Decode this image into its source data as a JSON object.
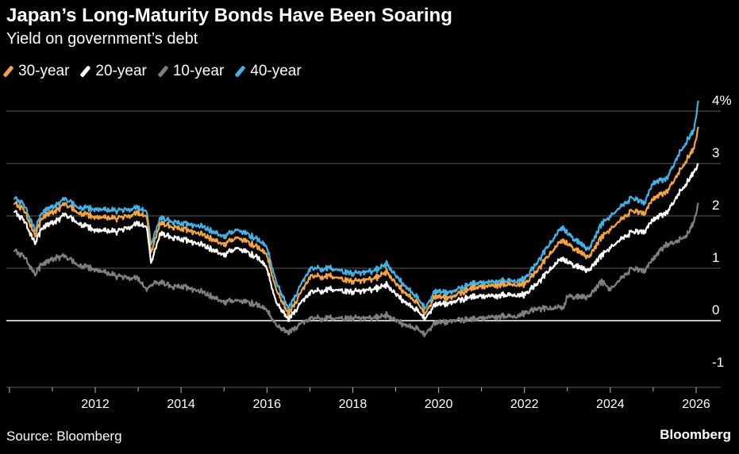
{
  "header": {
    "title": "Japan’s Long-Maturity Bonds Have Been Soaring",
    "subtitle": "Yield on government’s debt"
  },
  "footer": {
    "source": "Source: Bloomberg",
    "brand": "Bloomberg"
  },
  "colors": {
    "background": "#000000",
    "grid": "#5a5a5a",
    "zero_line": "#ffffff"
  },
  "chart_data": {
    "type": "line",
    "title": "Japan’s Long-Maturity Bonds Have Been Soaring",
    "subtitle": "Yield on government’s debt",
    "xlabel": "",
    "ylabel": "",
    "xlim": [
      2010.0,
      2026.6
    ],
    "ylim": [
      -1.0,
      4.0
    ],
    "x_ticks": [
      "2012",
      "2014",
      "2016",
      "2018",
      "2020",
      "2022",
      "2024",
      "2026"
    ],
    "y_ticks": [
      "4%",
      "3",
      "2",
      "1",
      "0",
      "-1"
    ],
    "y_tick_values": [
      4,
      3,
      2,
      1,
      0,
      -1
    ],
    "legend": "top-left",
    "grid": true,
    "series": [
      {
        "name": "30-year",
        "color": "#f5a33b",
        "points": [
          [
            2010.1,
            2.25
          ],
          [
            2010.3,
            2.15
          ],
          [
            2010.6,
            1.65
          ],
          [
            2010.8,
            2.0
          ],
          [
            2011.1,
            2.1
          ],
          [
            2011.3,
            2.25
          ],
          [
            2011.6,
            2.05
          ],
          [
            2012.0,
            2.0
          ],
          [
            2012.5,
            1.95
          ],
          [
            2013.0,
            2.05
          ],
          [
            2013.2,
            2.0
          ],
          [
            2013.3,
            1.3
          ],
          [
            2013.5,
            1.85
          ],
          [
            2014.0,
            1.75
          ],
          [
            2014.5,
            1.65
          ],
          [
            2015.0,
            1.45
          ],
          [
            2015.3,
            1.6
          ],
          [
            2015.8,
            1.4
          ],
          [
            2016.0,
            1.25
          ],
          [
            2016.2,
            0.6
          ],
          [
            2016.5,
            0.1
          ],
          [
            2016.8,
            0.55
          ],
          [
            2017.0,
            0.85
          ],
          [
            2017.5,
            0.85
          ],
          [
            2018.0,
            0.75
          ],
          [
            2018.5,
            0.8
          ],
          [
            2018.8,
            0.95
          ],
          [
            2019.0,
            0.7
          ],
          [
            2019.5,
            0.35
          ],
          [
            2019.7,
            0.15
          ],
          [
            2019.9,
            0.45
          ],
          [
            2020.3,
            0.45
          ],
          [
            2020.8,
            0.62
          ],
          [
            2021.3,
            0.68
          ],
          [
            2021.8,
            0.68
          ],
          [
            2022.0,
            0.7
          ],
          [
            2022.3,
            0.95
          ],
          [
            2022.6,
            1.3
          ],
          [
            2022.9,
            1.55
          ],
          [
            2023.0,
            1.45
          ],
          [
            2023.5,
            1.2
          ],
          [
            2023.8,
            1.6
          ],
          [
            2024.0,
            1.75
          ],
          [
            2024.5,
            2.1
          ],
          [
            2024.8,
            2.05
          ],
          [
            2025.0,
            2.35
          ],
          [
            2025.3,
            2.45
          ],
          [
            2025.6,
            2.85
          ],
          [
            2025.8,
            3.1
          ],
          [
            2025.95,
            3.3
          ],
          [
            2026.05,
            3.7
          ]
        ]
      },
      {
        "name": "20-year",
        "color": "#ffffff",
        "points": [
          [
            2010.1,
            2.1
          ],
          [
            2010.3,
            1.95
          ],
          [
            2010.6,
            1.5
          ],
          [
            2010.8,
            1.8
          ],
          [
            2011.1,
            1.9
          ],
          [
            2011.3,
            2.05
          ],
          [
            2011.6,
            1.85
          ],
          [
            2012.0,
            1.75
          ],
          [
            2012.5,
            1.7
          ],
          [
            2013.0,
            1.85
          ],
          [
            2013.2,
            1.8
          ],
          [
            2013.3,
            1.1
          ],
          [
            2013.5,
            1.65
          ],
          [
            2014.0,
            1.55
          ],
          [
            2014.5,
            1.45
          ],
          [
            2015.0,
            1.25
          ],
          [
            2015.3,
            1.4
          ],
          [
            2015.8,
            1.2
          ],
          [
            2016.0,
            1.0
          ],
          [
            2016.2,
            0.35
          ],
          [
            2016.5,
            0.0
          ],
          [
            2016.8,
            0.35
          ],
          [
            2017.0,
            0.55
          ],
          [
            2017.5,
            0.6
          ],
          [
            2018.0,
            0.55
          ],
          [
            2018.5,
            0.6
          ],
          [
            2018.8,
            0.7
          ],
          [
            2019.0,
            0.5
          ],
          [
            2019.5,
            0.2
          ],
          [
            2019.7,
            0.05
          ],
          [
            2019.9,
            0.3
          ],
          [
            2020.3,
            0.35
          ],
          [
            2020.8,
            0.45
          ],
          [
            2021.3,
            0.48
          ],
          [
            2021.8,
            0.48
          ],
          [
            2022.0,
            0.5
          ],
          [
            2022.3,
            0.7
          ],
          [
            2022.6,
            1.0
          ],
          [
            2022.9,
            1.2
          ],
          [
            2023.0,
            1.1
          ],
          [
            2023.5,
            0.95
          ],
          [
            2023.8,
            1.25
          ],
          [
            2024.0,
            1.4
          ],
          [
            2024.5,
            1.7
          ],
          [
            2024.8,
            1.7
          ],
          [
            2025.0,
            1.95
          ],
          [
            2025.3,
            2.05
          ],
          [
            2025.6,
            2.45
          ],
          [
            2025.8,
            2.65
          ],
          [
            2025.95,
            2.85
          ],
          [
            2026.05,
            3.0
          ]
        ]
      },
      {
        "name": "10-year",
        "color": "#7f7f7f",
        "points": [
          [
            2010.1,
            1.35
          ],
          [
            2010.3,
            1.25
          ],
          [
            2010.6,
            0.9
          ],
          [
            2010.8,
            1.1
          ],
          [
            2011.1,
            1.2
          ],
          [
            2011.3,
            1.25
          ],
          [
            2011.6,
            1.05
          ],
          [
            2012.0,
            1.0
          ],
          [
            2012.5,
            0.85
          ],
          [
            2013.0,
            0.8
          ],
          [
            2013.2,
            0.6
          ],
          [
            2013.4,
            0.75
          ],
          [
            2013.8,
            0.65
          ],
          [
            2014.0,
            0.65
          ],
          [
            2014.5,
            0.55
          ],
          [
            2015.0,
            0.35
          ],
          [
            2015.3,
            0.4
          ],
          [
            2015.8,
            0.3
          ],
          [
            2016.0,
            0.2
          ],
          [
            2016.2,
            -0.1
          ],
          [
            2016.5,
            -0.25
          ],
          [
            2016.8,
            -0.05
          ],
          [
            2017.0,
            0.05
          ],
          [
            2017.5,
            0.05
          ],
          [
            2018.0,
            0.05
          ],
          [
            2018.5,
            0.05
          ],
          [
            2018.8,
            0.12
          ],
          [
            2019.0,
            0.0
          ],
          [
            2019.5,
            -0.15
          ],
          [
            2019.7,
            -0.25
          ],
          [
            2019.9,
            -0.05
          ],
          [
            2020.3,
            0.0
          ],
          [
            2020.8,
            0.02
          ],
          [
            2021.3,
            0.08
          ],
          [
            2021.8,
            0.07
          ],
          [
            2022.0,
            0.15
          ],
          [
            2022.3,
            0.22
          ],
          [
            2022.6,
            0.25
          ],
          [
            2022.9,
            0.25
          ],
          [
            2023.0,
            0.45
          ],
          [
            2023.5,
            0.45
          ],
          [
            2023.8,
            0.75
          ],
          [
            2024.0,
            0.6
          ],
          [
            2024.5,
            1.0
          ],
          [
            2024.8,
            0.95
          ],
          [
            2025.0,
            1.2
          ],
          [
            2025.3,
            1.45
          ],
          [
            2025.6,
            1.55
          ],
          [
            2025.8,
            1.65
          ],
          [
            2025.95,
            1.9
          ],
          [
            2026.05,
            2.25
          ]
        ]
      },
      {
        "name": "40-year",
        "color": "#3fb2e8",
        "points": [
          [
            2010.1,
            2.35
          ],
          [
            2010.3,
            2.25
          ],
          [
            2010.6,
            1.75
          ],
          [
            2010.8,
            2.1
          ],
          [
            2011.1,
            2.2
          ],
          [
            2011.3,
            2.35
          ],
          [
            2011.6,
            2.15
          ],
          [
            2012.0,
            2.15
          ],
          [
            2012.5,
            2.1
          ],
          [
            2013.0,
            2.15
          ],
          [
            2013.2,
            2.1
          ],
          [
            2013.3,
            1.45
          ],
          [
            2013.5,
            1.95
          ],
          [
            2014.0,
            1.85
          ],
          [
            2014.5,
            1.8
          ],
          [
            2015.0,
            1.6
          ],
          [
            2015.3,
            1.75
          ],
          [
            2015.8,
            1.55
          ],
          [
            2016.0,
            1.4
          ],
          [
            2016.2,
            0.75
          ],
          [
            2016.5,
            0.2
          ],
          [
            2016.8,
            0.7
          ],
          [
            2017.0,
            1.0
          ],
          [
            2017.5,
            1.0
          ],
          [
            2018.0,
            0.9
          ],
          [
            2018.5,
            0.95
          ],
          [
            2018.8,
            1.1
          ],
          [
            2019.0,
            0.85
          ],
          [
            2019.5,
            0.45
          ],
          [
            2019.7,
            0.25
          ],
          [
            2019.9,
            0.55
          ],
          [
            2020.3,
            0.55
          ],
          [
            2020.8,
            0.7
          ],
          [
            2021.3,
            0.75
          ],
          [
            2021.8,
            0.75
          ],
          [
            2022.0,
            0.8
          ],
          [
            2022.3,
            1.1
          ],
          [
            2022.6,
            1.5
          ],
          [
            2022.9,
            1.8
          ],
          [
            2023.0,
            1.65
          ],
          [
            2023.5,
            1.35
          ],
          [
            2023.8,
            1.85
          ],
          [
            2024.0,
            2.0
          ],
          [
            2024.5,
            2.35
          ],
          [
            2024.8,
            2.25
          ],
          [
            2025.0,
            2.65
          ],
          [
            2025.3,
            2.7
          ],
          [
            2025.6,
            3.2
          ],
          [
            2025.8,
            3.45
          ],
          [
            2025.95,
            3.65
          ],
          [
            2026.05,
            4.2
          ]
        ]
      }
    ]
  }
}
